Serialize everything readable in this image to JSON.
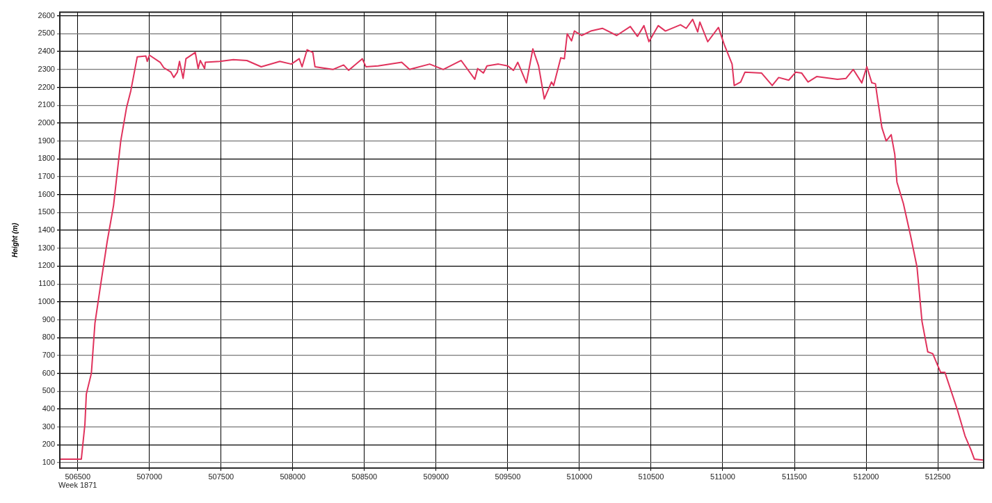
{
  "chart_data": {
    "type": "line",
    "ylabel": "Height (m)",
    "annotations": [
      "Week 1871"
    ],
    "x": [
      506375,
      506525,
      506550,
      506560,
      506595,
      506620,
      506655,
      506705,
      506750,
      506800,
      506840,
      506870,
      506915,
      506975,
      506985,
      507000,
      507075,
      507100,
      507150,
      507170,
      507195,
      507210,
      507235,
      507255,
      507320,
      507340,
      507355,
      507385,
      507390,
      507490,
      507585,
      507680,
      507780,
      507910,
      507990,
      508045,
      508065,
      508100,
      508140,
      508155,
      508280,
      508355,
      508390,
      508485,
      508510,
      508595,
      508760,
      508815,
      508955,
      509050,
      509175,
      509270,
      509290,
      509330,
      509355,
      509435,
      509500,
      509540,
      509570,
      509630,
      509675,
      509715,
      509755,
      509805,
      509820,
      509870,
      509895,
      509915,
      509945,
      509965,
      510015,
      510080,
      510160,
      510260,
      510355,
      510405,
      510450,
      510485,
      510550,
      510600,
      510705,
      510745,
      510790,
      510825,
      510840,
      510895,
      510970,
      511010,
      511065,
      511080,
      511125,
      511155,
      511270,
      511345,
      511390,
      511460,
      511510,
      511550,
      511595,
      511655,
      511800,
      511860,
      511910,
      511970,
      512005,
      512040,
      512065,
      512080,
      512110,
      512140,
      512175,
      512200,
      512215,
      512260,
      512310,
      512355,
      512390,
      512430,
      512465,
      512520,
      512550,
      512635,
      512690,
      512730,
      512755,
      512815
    ],
    "series": [
      {
        "color": "#e0325c",
        "values": [
          120,
          120,
          315,
          485,
          600,
          880,
          1070,
          1335,
          1540,
          1900,
          2085,
          2180,
          2370,
          2375,
          2345,
          2380,
          2340,
          2310,
          2285,
          2255,
          2285,
          2345,
          2250,
          2360,
          2395,
          2305,
          2350,
          2305,
          2340,
          2345,
          2355,
          2350,
          2315,
          2345,
          2330,
          2360,
          2315,
          2410,
          2395,
          2315,
          2300,
          2325,
          2295,
          2360,
          2315,
          2320,
          2340,
          2300,
          2330,
          2300,
          2350,
          2245,
          2305,
          2280,
          2320,
          2330,
          2320,
          2295,
          2340,
          2225,
          2415,
          2320,
          2135,
          2230,
          2210,
          2365,
          2360,
          2500,
          2460,
          2515,
          2490,
          2515,
          2530,
          2490,
          2540,
          2485,
          2545,
          2455,
          2545,
          2515,
          2550,
          2530,
          2580,
          2510,
          2565,
          2455,
          2535,
          2440,
          2330,
          2210,
          2230,
          2285,
          2280,
          2210,
          2255,
          2240,
          2285,
          2280,
          2230,
          2260,
          2245,
          2250,
          2300,
          2225,
          2315,
          2225,
          2220,
          2135,
          1975,
          1900,
          1935,
          1825,
          1670,
          1550,
          1370,
          1195,
          890,
          720,
          710,
          605,
          605,
          400,
          250,
          175,
          120,
          115
        ]
      }
    ],
    "xlim": [
      506375,
      512820
    ],
    "ylim": [
      70,
      2620
    ],
    "xticks": [
      506500,
      507000,
      507500,
      508000,
      508500,
      509000,
      509500,
      510000,
      510500,
      511000,
      511500,
      512000,
      512500
    ],
    "yticks": [
      100,
      200,
      300,
      400,
      500,
      600,
      700,
      800,
      900,
      1000,
      1100,
      1200,
      1300,
      1400,
      1500,
      1600,
      1700,
      1800,
      1900,
      2000,
      2100,
      2200,
      2300,
      2400,
      2500,
      2600
    ],
    "grid": true,
    "legend": false
  }
}
